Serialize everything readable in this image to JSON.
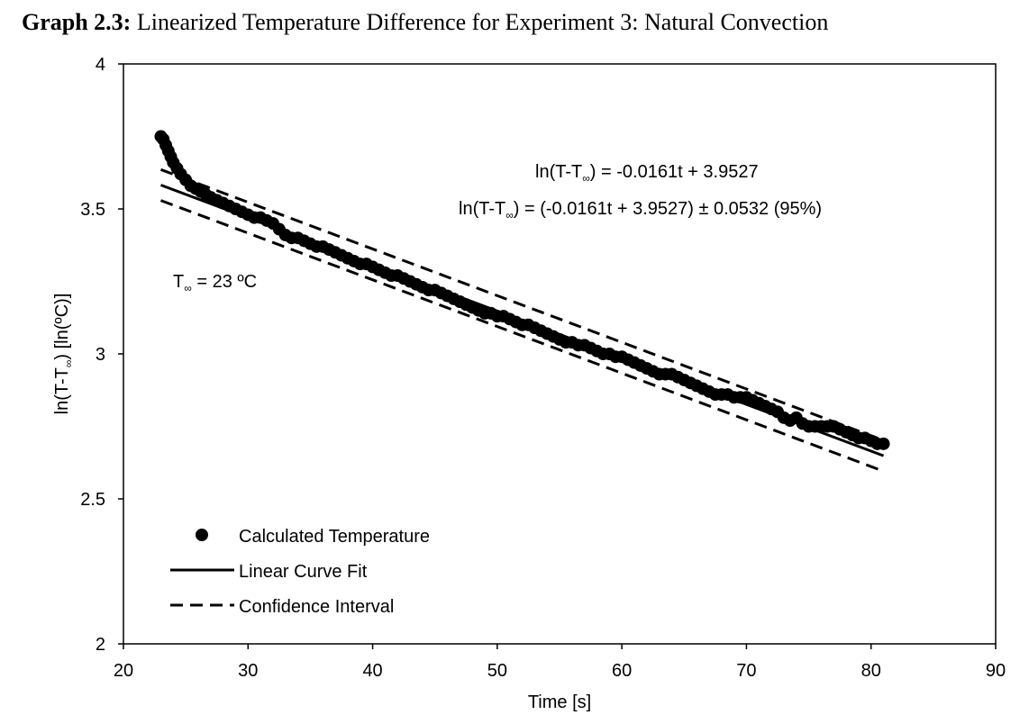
{
  "figure": {
    "title_prefix": "Graph 2.3:",
    "title_text": " Linearized Temperature Difference for Experiment 3: Natural Convection"
  },
  "chart_data": {
    "type": "scatter",
    "xlabel": "Time [s]",
    "ylabel": {
      "main": "ln(T-T",
      "sub": "∞",
      "rest": ")  [ln(ºC)]"
    },
    "xlim": [
      20,
      90
    ],
    "ylim": [
      2,
      4
    ],
    "x_ticks": [
      "20",
      "30",
      "40",
      "50",
      "60",
      "70",
      "80",
      "90"
    ],
    "y_ticks": [
      "2",
      "2.5",
      "3",
      "3.5",
      "4"
    ],
    "grid": false,
    "legend_position": "bottom-left",
    "legend": [
      {
        "label": "Calculated Temperature",
        "marker": "circle"
      },
      {
        "label": "Linear Curve Fit",
        "marker": "solid-line"
      },
      {
        "label": "Confidence Interval",
        "marker": "dashed-line"
      }
    ],
    "annotations": {
      "equation": {
        "lhs": "ln(T-T",
        "sub": "∞",
        "rhs": ")  = -0.0161t + 3.9527"
      },
      "interval": {
        "lhs": "ln(T-T",
        "sub": "∞",
        "rhs": ")  = (-0.0161t + 3.9527) ± 0.0532   (95%)"
      },
      "ambient": {
        "lhs": "T",
        "sub": "∞",
        "rhs": " = 23 ºC"
      }
    },
    "fit": {
      "slope": -0.0161,
      "intercept": 3.9527,
      "half_width": 0.0532,
      "confidence": "95%"
    },
    "series": [
      {
        "name": "Calculated Temperature",
        "x": [
          23.0,
          23.2,
          23.4,
          23.6,
          23.8,
          24.0,
          24.3,
          24.6,
          25.0,
          25.4,
          25.8,
          26.2,
          26.6,
          27.0,
          27.5,
          28.0,
          28.5,
          29.0,
          29.5,
          30.0,
          30.5,
          31.0,
          31.5,
          32.0,
          32.5,
          33.0,
          33.5,
          34.0,
          34.5,
          35.0,
          35.5,
          36.0,
          36.5,
          37.0,
          37.5,
          38.0,
          38.5,
          39.0,
          39.5,
          40.0,
          40.5,
          41.0,
          41.5,
          42.0,
          42.5,
          43.0,
          43.5,
          44.0,
          44.5,
          45.0,
          45.5,
          46.0,
          46.5,
          47.0,
          47.5,
          48.0,
          48.5,
          49.0,
          49.5,
          50.0,
          50.5,
          51.0,
          51.5,
          52.0,
          52.5,
          53.0,
          53.5,
          54.0,
          54.5,
          55.0,
          55.5,
          56.0,
          56.5,
          57.0,
          57.5,
          58.0,
          58.5,
          59.0,
          59.5,
          60.0,
          60.5,
          61.0,
          61.5,
          62.0,
          62.5,
          63.0,
          63.5,
          64.0,
          64.5,
          65.0,
          65.5,
          66.0,
          66.5,
          67.0,
          67.5,
          68.0,
          68.5,
          69.0,
          69.5,
          70.0,
          70.5,
          71.0,
          71.5,
          72.0,
          72.5,
          73.0,
          73.5,
          74.0,
          74.5,
          75.0,
          75.5,
          76.0,
          76.5,
          77.0,
          77.5,
          78.0,
          78.5,
          79.0,
          79.5,
          80.0,
          80.5,
          81.0
        ],
        "y": [
          3.75,
          3.74,
          3.72,
          3.7,
          3.68,
          3.66,
          3.64,
          3.62,
          3.6,
          3.58,
          3.57,
          3.56,
          3.55,
          3.54,
          3.53,
          3.52,
          3.51,
          3.5,
          3.49,
          3.48,
          3.47,
          3.47,
          3.46,
          3.45,
          3.43,
          3.41,
          3.4,
          3.4,
          3.39,
          3.38,
          3.37,
          3.37,
          3.36,
          3.35,
          3.34,
          3.33,
          3.32,
          3.31,
          3.31,
          3.3,
          3.29,
          3.28,
          3.27,
          3.27,
          3.26,
          3.25,
          3.24,
          3.23,
          3.22,
          3.22,
          3.21,
          3.2,
          3.19,
          3.18,
          3.17,
          3.16,
          3.15,
          3.14,
          3.14,
          3.13,
          3.13,
          3.12,
          3.11,
          3.1,
          3.1,
          3.09,
          3.08,
          3.07,
          3.06,
          3.05,
          3.04,
          3.04,
          3.03,
          3.03,
          3.02,
          3.01,
          3.0,
          3.0,
          2.99,
          2.99,
          2.98,
          2.97,
          2.96,
          2.95,
          2.94,
          2.93,
          2.93,
          2.93,
          2.92,
          2.91,
          2.9,
          2.89,
          2.88,
          2.87,
          2.86,
          2.86,
          2.86,
          2.85,
          2.85,
          2.85,
          2.84,
          2.83,
          2.82,
          2.81,
          2.8,
          2.78,
          2.77,
          2.78,
          2.76,
          2.75,
          2.75,
          2.75,
          2.75,
          2.75,
          2.74,
          2.73,
          2.72,
          2.71,
          2.71,
          2.7,
          2.69,
          2.69
        ]
      },
      {
        "name": "Linear Curve Fit",
        "x": [
          23,
          81
        ],
        "y": [
          3.5824,
          2.6486
        ]
      },
      {
        "name": "Confidence Interval",
        "x": [
          23,
          81
        ],
        "y": [
          3.6356,
          2.7018
        ]
      },
      {
        "name": "Confidence Interval",
        "x": [
          23,
          81
        ],
        "y": [
          3.5292,
          2.5954
        ]
      }
    ]
  }
}
